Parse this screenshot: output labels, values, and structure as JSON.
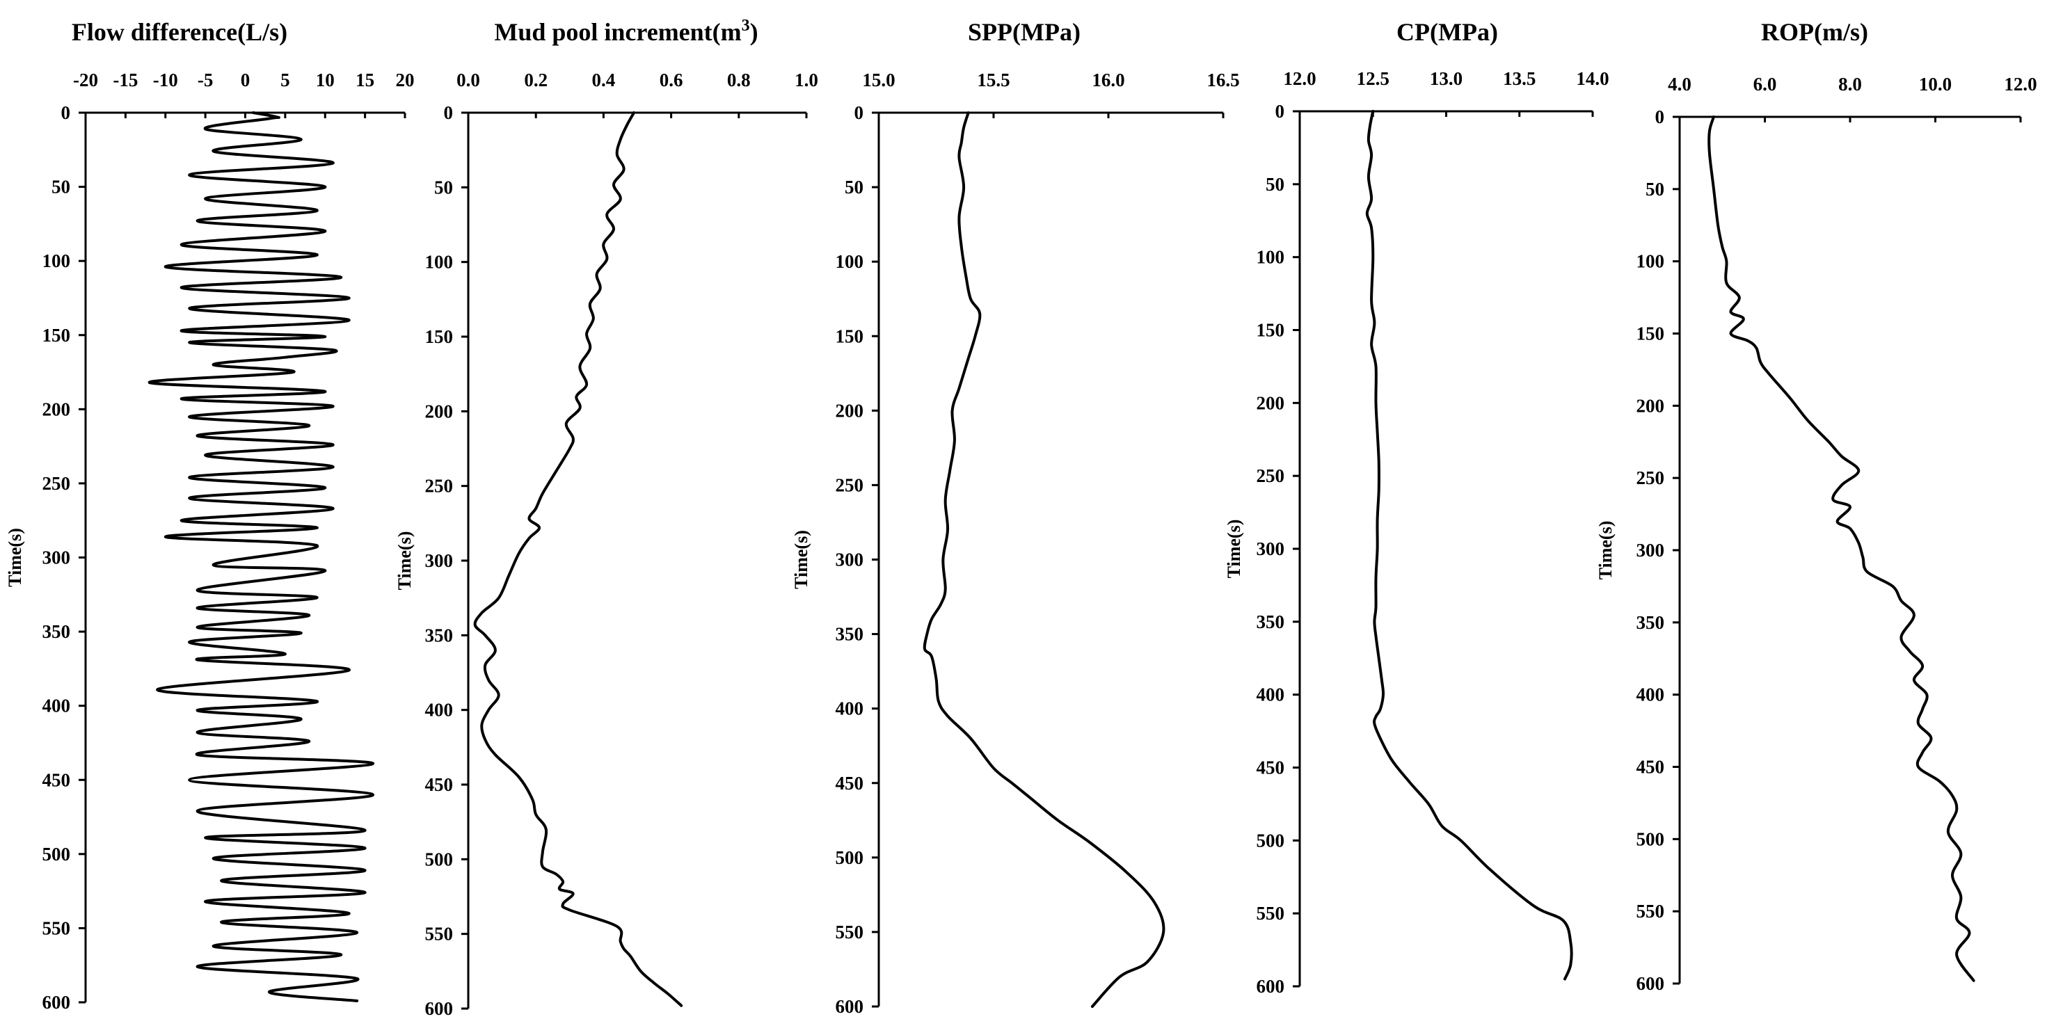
{
  "chart_data": [
    {
      "type": "line",
      "title": "Flow difference(L/s)",
      "xlabel": "Flow difference(L/s)",
      "ylabel": "Time(s)",
      "xlim": [
        -20,
        20
      ],
      "ylim": [
        0,
        600
      ],
      "y_inverted": true,
      "x_axis_position": "top",
      "x_ticks": [
        "-20",
        "-15",
        "-10",
        "-5",
        "0",
        "5",
        "10",
        "15",
        "20"
      ],
      "y_ticks": [
        "0",
        "50",
        "100",
        "150",
        "200",
        "250",
        "300",
        "350",
        "400",
        "450",
        "500",
        "550",
        "600"
      ],
      "grid": false,
      "series": [
        {
          "x": [
            1,
            4,
            3,
            -5,
            7,
            -4,
            11,
            -7,
            10,
            -5,
            9,
            -6,
            10,
            -8,
            9,
            -10,
            12,
            -8,
            13,
            -7,
            13,
            -8,
            10,
            -7,
            11,
            5,
            -4,
            6,
            -12,
            10,
            -8,
            11,
            -7,
            8,
            -6,
            11,
            -5,
            11,
            -7,
            10,
            -7,
            11,
            -8,
            9,
            -10,
            9,
            -4,
            10,
            -6,
            9,
            -6,
            8,
            -6,
            7,
            -7,
            5,
            -6,
            13,
            -11,
            9,
            -6,
            7,
            -6,
            8,
            -6,
            16,
            -7,
            16,
            -6,
            15,
            -5,
            15,
            -4,
            15,
            -3,
            15,
            -5,
            13,
            -3,
            14,
            -4,
            12,
            -6,
            14,
            3,
            14
          ],
          "y": [
            0,
            3,
            4,
            11,
            18,
            26,
            34,
            42,
            50,
            58,
            66,
            73,
            80,
            89,
            96,
            104,
            111,
            118,
            125,
            132,
            140,
            147,
            151,
            155,
            160,
            165,
            170,
            175,
            182,
            188,
            193,
            198,
            205,
            211,
            218,
            224,
            231,
            239,
            246,
            253,
            260,
            267,
            275,
            280,
            286,
            292,
            305,
            309,
            322,
            327,
            334,
            339,
            347,
            351,
            357,
            365,
            369,
            376,
            389,
            397,
            403,
            409,
            418,
            424,
            433,
            439,
            450,
            460,
            471,
            484,
            489,
            496,
            503,
            511,
            518,
            526,
            532,
            540,
            546,
            553,
            562,
            568,
            576,
            584,
            593,
            599
          ]
        }
      ]
    },
    {
      "type": "line",
      "title": "Mud pool increment(m³)",
      "xlabel": "Mud pool increment(m³)",
      "ylabel": "Time(s)",
      "xlim": [
        0.0,
        1.0
      ],
      "ylim": [
        0,
        600
      ],
      "y_inverted": true,
      "x_axis_position": "top",
      "x_ticks": [
        "0.0",
        "0.2",
        "0.4",
        "0.6",
        "0.8",
        "1.0"
      ],
      "y_ticks": [
        "0",
        "50",
        "100",
        "150",
        "200",
        "250",
        "300",
        "350",
        "400",
        "450",
        "500",
        "550",
        "600"
      ],
      "grid": false,
      "series": [
        {
          "x": [
            0.49,
            0.47,
            0.45,
            0.44,
            0.46,
            0.43,
            0.45,
            0.41,
            0.43,
            0.4,
            0.41,
            0.38,
            0.39,
            0.36,
            0.37,
            0.35,
            0.36,
            0.33,
            0.35,
            0.32,
            0.33,
            0.29,
            0.31,
            0.3,
            0.26,
            0.22,
            0.2,
            0.18,
            0.21,
            0.18,
            0.15,
            0.12,
            0.09,
            0.04,
            0.02,
            0.05,
            0.08,
            0.05,
            0.06,
            0.09,
            0.06,
            0.04,
            0.05,
            0.08,
            0.15,
            0.19,
            0.2,
            0.23,
            0.22,
            0.22,
            0.26,
            0.28,
            0.27,
            0.31,
            0.28,
            0.3,
            0.44,
            0.45,
            0.46,
            0.48,
            0.51,
            0.55,
            0.59,
            0.63
          ],
          "y": [
            0,
            8,
            18,
            28,
            38,
            48,
            58,
            68,
            78,
            88,
            98,
            108,
            118,
            128,
            138,
            148,
            158,
            170,
            182,
            190,
            198,
            208,
            218,
            225,
            240,
            255,
            265,
            272,
            278,
            285,
            295,
            310,
            325,
            335,
            343,
            350,
            360,
            370,
            380,
            390,
            400,
            410,
            420,
            430,
            445,
            460,
            470,
            480,
            495,
            505,
            510,
            515,
            520,
            523,
            530,
            534,
            545,
            555,
            560,
            565,
            575,
            583,
            590,
            598
          ]
        }
      ]
    },
    {
      "type": "line",
      "title": "SPP(MPa)",
      "xlabel": "SPP(MPa)",
      "ylabel": "Time(s)",
      "xlim": [
        15.0,
        16.5
      ],
      "ylim": [
        0,
        600
      ],
      "y_inverted": true,
      "x_axis_position": "top",
      "x_ticks": [
        "15.0",
        "15.5",
        "16.0",
        "16.5"
      ],
      "y_ticks": [
        "0",
        "50",
        "100",
        "150",
        "200",
        "250",
        "300",
        "350",
        "400",
        "450",
        "500",
        "550",
        "600"
      ],
      "grid": false,
      "series": [
        {
          "x": [
            15.39,
            15.37,
            15.36,
            15.35,
            15.37,
            15.35,
            15.36,
            15.38,
            15.4,
            15.44,
            15.42,
            15.39,
            15.35,
            15.32,
            15.33,
            15.31,
            15.29,
            15.3,
            15.28,
            15.29,
            15.27,
            15.23,
            15.21,
            15.2,
            15.23,
            15.25,
            15.26,
            15.3,
            15.4,
            15.5,
            15.58,
            15.66,
            15.78,
            15.92,
            16.08,
            16.2,
            16.24,
            16.17,
            16.05,
            15.93
          ],
          "y": [
            0,
            10,
            20,
            30,
            50,
            70,
            90,
            110,
            125,
            135,
            150,
            165,
            185,
            200,
            220,
            240,
            260,
            280,
            300,
            320,
            330,
            340,
            350,
            360,
            365,
            380,
            395,
            405,
            420,
            440,
            450,
            460,
            475,
            490,
            510,
            530,
            550,
            570,
            580,
            600
          ]
        }
      ]
    },
    {
      "type": "line",
      "title": "CP(MPa)",
      "xlabel": "CP(MPa)",
      "ylabel": "Time(s)",
      "xlim": [
        12.0,
        14.0
      ],
      "ylim": [
        0,
        600
      ],
      "y_inverted": true,
      "x_axis_position": "top",
      "x_ticks": [
        "12.0",
        "12.5",
        "13.0",
        "13.5",
        "14.0"
      ],
      "y_ticks": [
        "0",
        "50",
        "100",
        "150",
        "200",
        "250",
        "300",
        "350",
        "400",
        "450",
        "500",
        "550",
        "600"
      ],
      "grid": false,
      "series": [
        {
          "x": [
            12.5,
            12.48,
            12.47,
            12.49,
            12.47,
            12.49,
            12.46,
            12.49,
            12.5,
            12.49,
            12.51,
            12.49,
            12.52,
            12.52,
            12.53,
            12.54,
            12.54,
            12.53,
            12.53,
            12.52,
            12.52,
            12.51,
            12.52,
            12.54,
            12.56,
            12.57,
            12.55,
            12.52,
            12.51,
            12.55,
            12.63,
            12.75,
            12.88,
            12.97,
            13.1,
            13.3,
            13.6,
            13.8,
            13.85,
            13.85,
            13.81
          ],
          "y": [
            0,
            10,
            20,
            30,
            45,
            60,
            70,
            80,
            100,
            130,
            145,
            160,
            175,
            200,
            220,
            240,
            260,
            280,
            300,
            320,
            340,
            350,
            360,
            375,
            390,
            400,
            410,
            415,
            420,
            430,
            445,
            460,
            475,
            490,
            500,
            520,
            545,
            555,
            570,
            585,
            595
          ]
        }
      ]
    },
    {
      "type": "line",
      "title": "ROP(m/s)",
      "xlabel": "ROP(m/s)",
      "ylabel": "Time(s)",
      "xlim": [
        4.0,
        12.0
      ],
      "ylim": [
        0,
        600
      ],
      "y_inverted": true,
      "x_axis_position": "top",
      "x_ticks": [
        "4.0",
        "6.0",
        "8.0",
        "10.0",
        "12.0"
      ],
      "y_ticks": [
        "0",
        "50",
        "100",
        "150",
        "200",
        "250",
        "300",
        "350",
        "400",
        "450",
        "500",
        "550",
        "600"
      ],
      "grid": false,
      "series": [
        {
          "x": [
            4.8,
            4.7,
            4.7,
            4.8,
            4.9,
            5.0,
            5.1,
            5.1,
            5.4,
            5.2,
            5.5,
            5.2,
            5.6,
            5.8,
            5.9,
            6.1,
            6.6,
            7.0,
            7.5,
            7.8,
            8.2,
            7.8,
            7.6,
            8.0,
            7.7,
            8.0,
            8.2,
            8.3,
            8.4,
            9.0,
            9.2,
            9.5,
            9.2,
            9.4,
            9.7,
            9.5,
            9.8,
            9.7,
            9.6,
            9.9,
            9.7,
            9.6,
            10.1,
            10.4,
            10.5,
            10.3,
            10.6,
            10.4,
            10.6,
            10.5,
            10.8,
            10.5,
            10.9
          ],
          "y": [
            0,
            10,
            25,
            50,
            75,
            90,
            100,
            115,
            125,
            135,
            140,
            150,
            155,
            160,
            170,
            178,
            195,
            210,
            225,
            235,
            245,
            255,
            265,
            270,
            280,
            285,
            295,
            305,
            315,
            325,
            335,
            345,
            360,
            370,
            380,
            390,
            400,
            410,
            420,
            430,
            440,
            450,
            460,
            470,
            480,
            495,
            510,
            525,
            540,
            555,
            565,
            580,
            598
          ]
        }
      ]
    }
  ]
}
